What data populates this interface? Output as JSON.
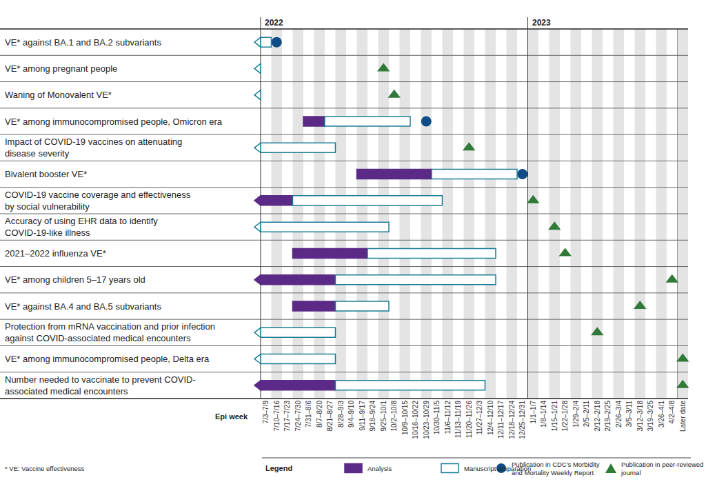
{
  "chart_data": {
    "type": "gantt",
    "x_label": "Epi week",
    "categories": [
      "7/3–7/9",
      "7/10–7/16",
      "7/17–7/23",
      "7/24–7/30",
      "7/31–8/6",
      "8/7–8/20",
      "8/21–8/27",
      "8/28–9/3",
      "9/4–9/10",
      "9/11–9/17",
      "9/18–9/24",
      "9/25–10/1",
      "10/2–10/8",
      "10/9–10/15",
      "10/16–10/22",
      "10/23–10/29",
      "10/30–11/5",
      "11/6–11/12",
      "11/13–11/19",
      "11/20–11/26",
      "11/27–12/3",
      "12/4–12/10",
      "12/11–12/17",
      "12/18–12/24",
      "12/25–12/31",
      "1/1–1/7",
      "1/8–1/14",
      "1/15–1/21",
      "1/22–1/28",
      "1/29–2/4",
      "2/5–2/11",
      "2/12–2/18",
      "2/19–2/25",
      "2/26–3/4",
      "3/5–3/11",
      "3/12–3/18",
      "3/19–3/25",
      "3/26–4/1",
      "4/2–4/8",
      "Later date"
    ],
    "periods": [
      {
        "label": "2022",
        "start": "7/3–7/9"
      },
      {
        "label": "2023",
        "start": "1/1–1/7"
      }
    ],
    "series": [
      {
        "name": "Analysis",
        "color": "#5b2a86",
        "marker": "filled_bar"
      },
      {
        "name": "Manuscript preparation",
        "color": "#1b7c98",
        "marker": "open_bar"
      },
      {
        "name": "Publication in CDC's Morbidity\nand Mortality Weekly Report",
        "color": "#0f4c86",
        "marker": "circle"
      },
      {
        "name": "Publication in peer-reviewed\njournal",
        "color": "#2f7a38",
        "marker": "triangle-up"
      }
    ],
    "rows": [
      {
        "label": "VE* against BA.1 and BA.2 subvariants",
        "continues_before": true,
        "bars": [
          {
            "series": "Manuscript preparation",
            "start": "7/3–7/9",
            "end": "7/3–7/9"
          }
        ],
        "publication": {
          "series": "Publication in CDC's Morbidity\nand Mortality Weekly Report",
          "week": "7/10–7/16"
        }
      },
      {
        "label": "VE* among pregnant people",
        "continues_before": true,
        "bars": [],
        "publication": {
          "series": "Publication in peer-reviewed\njournal",
          "week": "9/25–10/1"
        }
      },
      {
        "label": "Waning of Monovalent VE*",
        "continues_before": true,
        "bars": [],
        "publication": {
          "series": "Publication in peer-reviewed\njournal",
          "week": "10/2–10/8"
        }
      },
      {
        "label": "VE* among immunocompromised people, Omicron era",
        "continues_before": false,
        "bars": [
          {
            "series": "Analysis",
            "start": "7/31–8/6",
            "end": "8/7–8/20"
          },
          {
            "series": "Manuscript preparation",
            "start": "8/21–8/27",
            "end": "10/9–10/15"
          }
        ],
        "publication": {
          "series": "Publication in CDC's Morbidity\nand Mortality Weekly Report",
          "week": "10/23–10/29"
        }
      },
      {
        "label": "Impact of COVID-19 vaccines on attenuating\ndisease severity",
        "continues_before": true,
        "bars": [
          {
            "series": "Manuscript preparation",
            "start": "7/3–7/9",
            "end": "8/21–8/27"
          }
        ],
        "publication": {
          "series": "Publication in peer-reviewed\njournal",
          "week": "11/20–11/26"
        }
      },
      {
        "label": "Bivalent booster VE*",
        "continues_before": false,
        "bars": [
          {
            "series": "Analysis",
            "start": "9/11–9/17",
            "end": "10/23–10/29"
          },
          {
            "series": "Manuscript preparation",
            "start": "10/30–11/5",
            "end": "12/18–12/24"
          }
        ],
        "publication": {
          "series": "Publication in CDC's Morbidity\nand Mortality Weekly Report",
          "week": "12/25–12/31"
        }
      },
      {
        "label": "COVID-19 vaccine coverage and effectiveness\nby social vulnerability",
        "continues_before": true,
        "bars": [
          {
            "series": "Analysis",
            "start": "7/3–7/9",
            "end": "7/17–7/23"
          },
          {
            "series": "Manuscript preparation",
            "start": "7/24–7/30",
            "end": "10/30–11/5"
          }
        ],
        "publication": {
          "series": "Publication in peer-reviewed\njournal",
          "week": "1/1–1/7"
        }
      },
      {
        "label": "Accuracy of using EHR data to identify\nCOVID-19-like illness",
        "continues_before": true,
        "bars": [
          {
            "series": "Manuscript preparation",
            "start": "7/3–7/9",
            "end": "9/25–10/1"
          }
        ],
        "publication": {
          "series": "Publication in peer-reviewed\njournal",
          "week": "1/15–1/21"
        }
      },
      {
        "label": "2021–2022 influenza VE*",
        "continues_before": false,
        "bars": [
          {
            "series": "Analysis",
            "start": "7/24–7/30",
            "end": "9/11–9/17"
          },
          {
            "series": "Manuscript preparation",
            "start": "9/18–9/24",
            "end": "12/4–12/10"
          }
        ],
        "publication": {
          "series": "Publication in peer-reviewed\njournal",
          "week": "1/22–1/28"
        }
      },
      {
        "label": "VE* among children 5–17 years old",
        "continues_before": true,
        "bars": [
          {
            "series": "Analysis",
            "start": "7/3–7/9",
            "end": "8/21–8/27"
          },
          {
            "series": "Manuscript preparation",
            "start": "8/28–9/3",
            "end": "12/4–12/10"
          }
        ],
        "publication": {
          "series": "Publication in peer-reviewed\njournal",
          "week": "4/2–4/8"
        }
      },
      {
        "label": "VE* against BA.4 and BA.5 subvariants",
        "continues_before": false,
        "bars": [
          {
            "series": "Analysis",
            "start": "7/24–7/30",
            "end": "8/21–8/27"
          },
          {
            "series": "Manuscript preparation",
            "start": "8/28–9/3",
            "end": "9/25–10/1"
          }
        ],
        "publication": {
          "series": "Publication in peer-reviewed\njournal",
          "week": "3/12–3/18"
        }
      },
      {
        "label": "Protection from mRNA vaccination and prior infection\nagainst COVID-associated medical encounters",
        "continues_before": true,
        "bars": [
          {
            "series": "Manuscript preparation",
            "start": "7/3–7/9",
            "end": "8/21–8/27"
          }
        ],
        "publication": {
          "series": "Publication in peer-reviewed\njournal",
          "week": "2/12–2/18"
        }
      },
      {
        "label": "VE* among immunocompromised people, Delta era",
        "continues_before": true,
        "bars": [
          {
            "series": "Manuscript preparation",
            "start": "7/3–7/9",
            "end": "8/21–8/27"
          }
        ],
        "publication": {
          "series": "Publication in peer-reviewed\njournal",
          "week": "Later date"
        }
      },
      {
        "label": "Number needed to vaccinate to prevent COVID-\nassociated medical encounters",
        "continues_before": true,
        "bars": [
          {
            "series": "Analysis",
            "start": "7/3–7/9",
            "end": "8/21–8/27"
          },
          {
            "series": "Manuscript preparation",
            "start": "8/28–9/3",
            "end": "11/27–12/3"
          }
        ],
        "publication": {
          "series": "Publication in peer-reviewed\njournal",
          "week": "Later date"
        }
      }
    ],
    "legend_title": "Legend",
    "footnote": "* VE: Vaccine effectiveness"
  }
}
